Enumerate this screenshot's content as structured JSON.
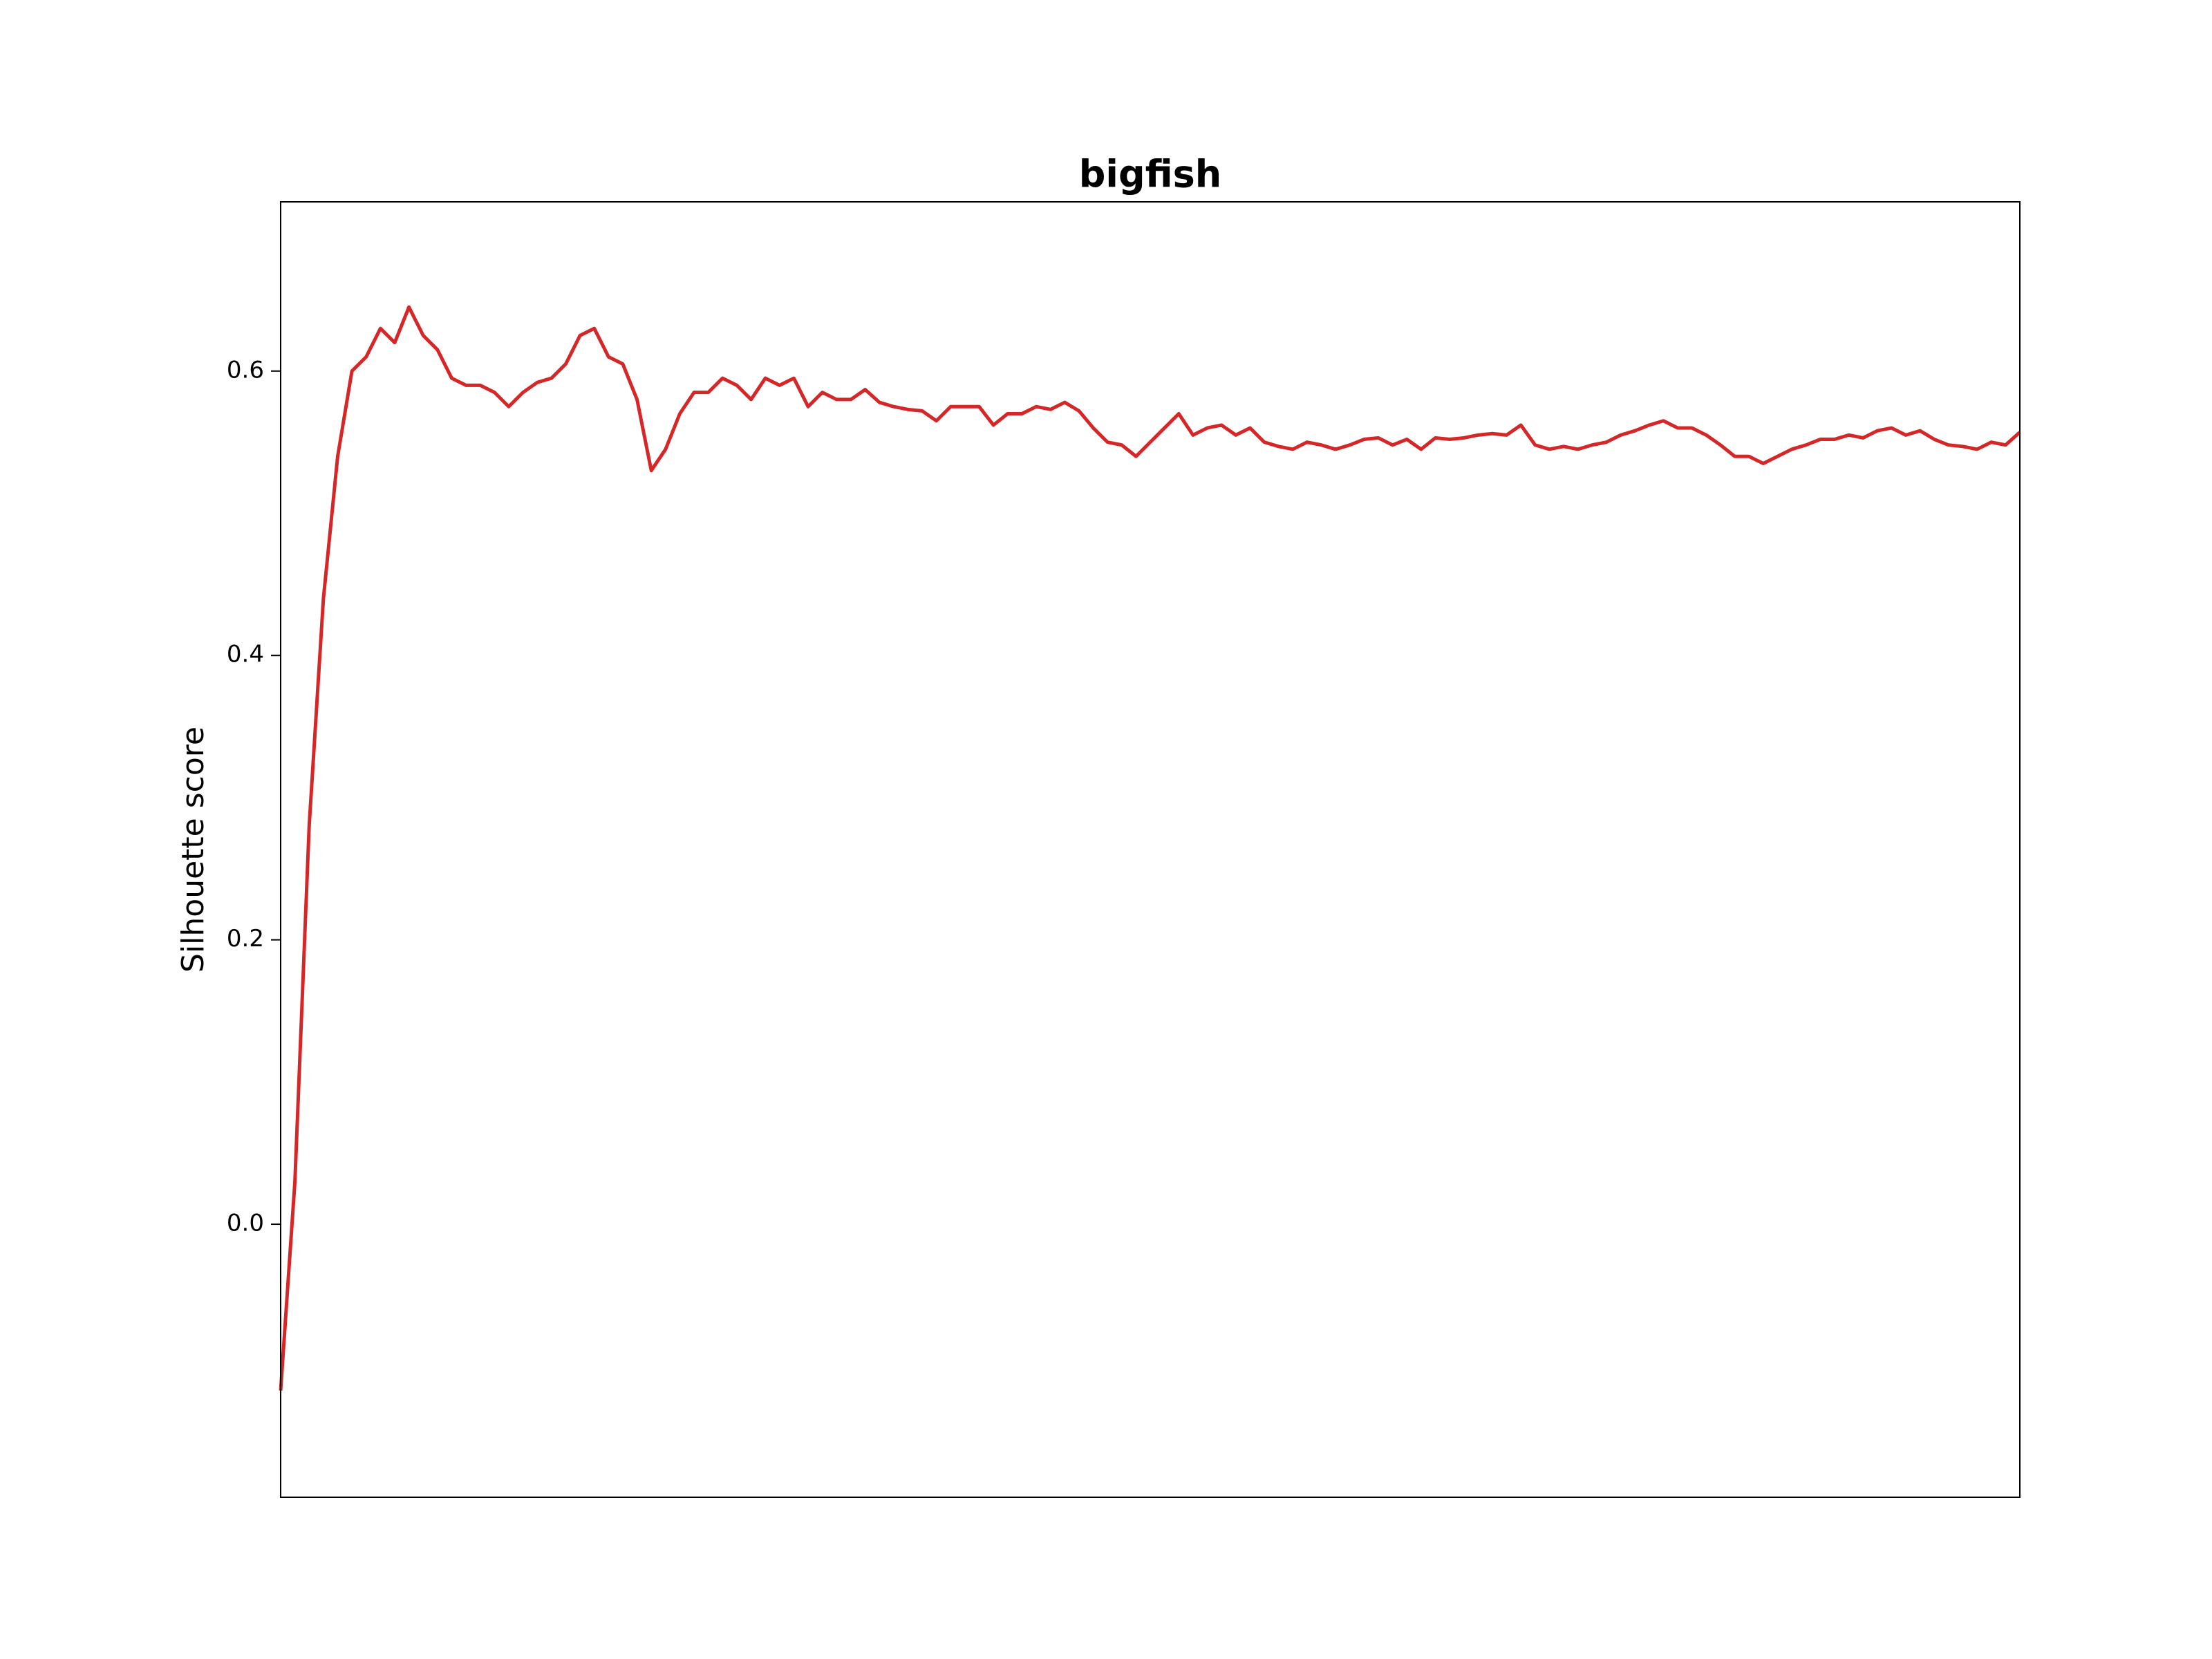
{
  "chart_data": {
    "type": "line",
    "title": "bigfish",
    "ylabel": "Silhouette score",
    "color": "#d62728",
    "grid": false,
    "ylim": [
      -0.192,
      0.719
    ],
    "yticks": [
      {
        "value": 0,
        "label": "0.0"
      },
      0.2,
      0.4,
      0.6
    ],
    "values": [
      -0.117,
      0.03,
      0.28,
      0.44,
      0.54,
      0.6,
      0.61,
      0.63,
      0.62,
      0.645,
      0.625,
      0.615,
      0.595,
      0.59,
      0.59,
      0.585,
      0.575,
      0.585,
      0.592,
      0.595,
      0.605,
      0.625,
      0.63,
      0.61,
      0.605,
      0.58,
      0.53,
      0.545,
      0.57,
      0.585,
      0.585,
      0.595,
      0.59,
      0.58,
      0.595,
      0.59,
      0.595,
      0.575,
      0.585,
      0.58,
      0.58,
      0.587,
      0.578,
      0.575,
      0.573,
      0.572,
      0.565,
      0.575,
      0.575,
      0.575,
      0.562,
      0.57,
      0.57,
      0.575,
      0.573,
      0.578,
      0.572,
      0.56,
      0.55,
      0.548,
      0.54,
      0.55,
      0.56,
      0.57,
      0.555,
      0.56,
      0.562,
      0.555,
      0.56,
      0.55,
      0.547,
      0.545,
      0.55,
      0.548,
      0.545,
      0.548,
      0.552,
      0.553,
      0.548,
      0.552,
      0.545,
      0.553,
      0.552,
      0.553,
      0.555,
      0.556,
      0.555,
      0.562,
      0.548,
      0.545,
      0.547,
      0.545,
      0.548,
      0.55,
      0.555,
      0.558,
      0.562,
      0.565,
      0.56,
      0.56,
      0.555,
      0.548,
      0.54,
      0.54,
      0.535,
      0.54,
      0.545,
      0.548,
      0.552,
      0.552,
      0.555,
      0.553,
      0.558,
      0.56,
      0.555,
      0.558,
      0.552,
      0.548,
      0.547,
      0.545,
      0.55,
      0.548,
      0.557
    ]
  }
}
